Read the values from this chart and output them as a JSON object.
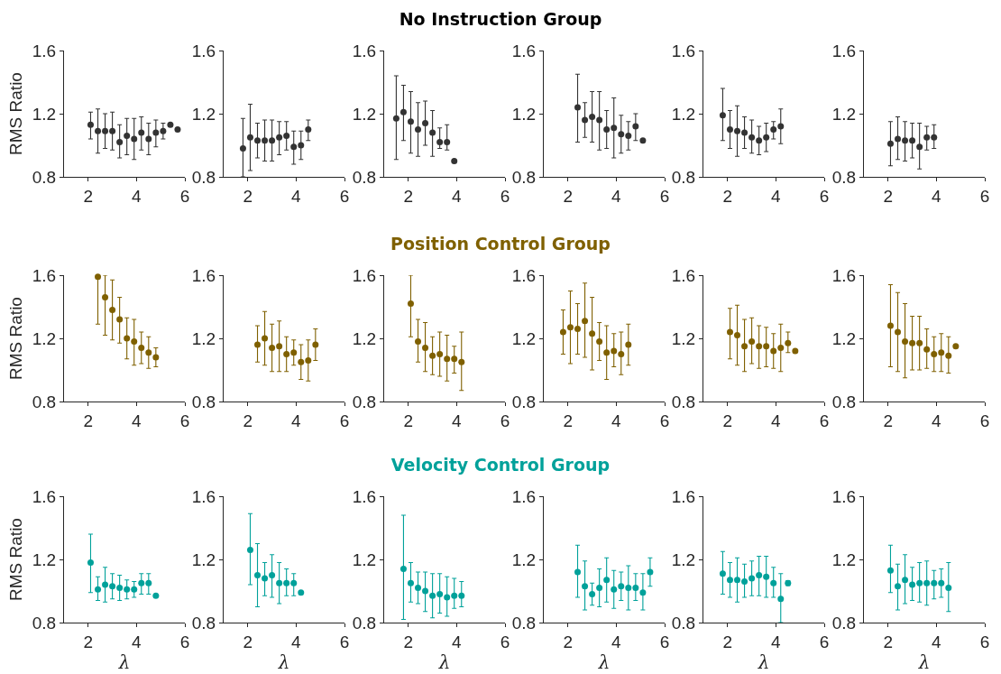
{
  "chart_data": [
    {
      "type": "other",
      "title": "No Instruction Group",
      "color": "#000000"
    },
    {
      "type": "scatter",
      "ylabel": "RMS Ratio",
      "color": "#333333",
      "marker": "circle",
      "xlim": [
        1,
        6
      ],
      "xticks": [
        2,
        4,
        6
      ],
      "ylim": [
        0.8,
        1.6
      ],
      "yticks": [
        0.8,
        1.2,
        1.6
      ],
      "x": [
        2.1,
        2.4,
        2.7,
        3.0,
        3.3,
        3.6,
        3.9,
        4.2,
        4.5,
        4.8,
        5.1,
        5.4,
        5.7
      ],
      "values": [
        1.13,
        1.09,
        1.09,
        1.09,
        1.02,
        1.06,
        1.04,
        1.08,
        1.04,
        1.08,
        1.09,
        1.13,
        1.1
      ],
      "errors": [
        [
          1.04,
          1.21
        ],
        [
          0.95,
          1.23
        ],
        [
          0.98,
          1.2
        ],
        [
          0.97,
          1.21
        ],
        [
          0.92,
          1.13
        ],
        [
          0.94,
          1.17
        ],
        [
          0.91,
          1.17
        ],
        [
          0.97,
          1.18
        ],
        [
          0.94,
          1.14
        ],
        [
          0.99,
          1.16
        ],
        [
          1.04,
          1.14
        ],
        null,
        null
      ]
    },
    {
      "type": "scatter",
      "color": "#333333",
      "marker": "circle",
      "xlim": [
        1,
        6
      ],
      "xticks": [
        2,
        4,
        6
      ],
      "ylim": [
        0.8,
        1.6
      ],
      "yticks": [
        0.8,
        1.2,
        1.6
      ],
      "x": [
        1.8,
        2.1,
        2.4,
        2.7,
        3.0,
        3.3,
        3.6,
        3.9,
        4.2,
        4.5
      ],
      "values": [
        0.98,
        1.05,
        1.03,
        1.03,
        1.03,
        1.05,
        1.06,
        0.99,
        1.0,
        1.1
      ],
      "errors": [
        [
          0.8,
          1.17
        ],
        [
          0.84,
          1.26
        ],
        [
          0.92,
          1.14
        ],
        [
          0.9,
          1.16
        ],
        [
          0.9,
          1.16
        ],
        [
          0.94,
          1.15
        ],
        [
          0.97,
          1.15
        ],
        [
          0.88,
          1.09
        ],
        [
          0.91,
          1.09
        ],
        [
          1.03,
          1.16
        ]
      ]
    },
    {
      "type": "scatter",
      "color": "#333333",
      "marker": "circle",
      "xlim": [
        1,
        6
      ],
      "xticks": [
        2,
        4,
        6
      ],
      "ylim": [
        0.8,
        1.6
      ],
      "yticks": [
        0.8,
        1.2,
        1.6
      ],
      "x": [
        1.5,
        1.8,
        2.1,
        2.4,
        2.7,
        3.0,
        3.3,
        3.6,
        3.9
      ],
      "values": [
        1.17,
        1.21,
        1.15,
        1.1,
        1.14,
        1.08,
        1.02,
        1.02,
        0.9
      ],
      "errors": [
        [
          0.91,
          1.44
        ],
        [
          1.03,
          1.38
        ],
        [
          0.95,
          1.34
        ],
        [
          0.93,
          1.27
        ],
        [
          1.0,
          1.28
        ],
        [
          0.93,
          1.22
        ],
        [
          0.98,
          1.11
        ],
        [
          0.97,
          1.13
        ],
        null
      ]
    },
    {
      "type": "scatter",
      "color": "#333333",
      "marker": "circle",
      "xlim": [
        1,
        6
      ],
      "xticks": [
        2,
        4,
        6
      ],
      "ylim": [
        0.8,
        1.6
      ],
      "yticks": [
        0.8,
        1.2,
        1.6
      ],
      "x": [
        2.4,
        2.7,
        3.0,
        3.3,
        3.6,
        3.9,
        4.2,
        4.5,
        4.8,
        5.1
      ],
      "values": [
        1.24,
        1.16,
        1.18,
        1.16,
        1.1,
        1.11,
        1.07,
        1.06,
        1.12,
        1.03
      ],
      "errors": [
        [
          1.02,
          1.45
        ],
        [
          1.05,
          1.27
        ],
        [
          1.02,
          1.34
        ],
        [
          0.97,
          1.34
        ],
        [
          0.98,
          1.22
        ],
        [
          0.92,
          1.3
        ],
        [
          0.95,
          1.19
        ],
        [
          0.97,
          1.15
        ],
        [
          1.03,
          1.2
        ],
        null
      ]
    },
    {
      "type": "scatter",
      "color": "#333333",
      "marker": "circle",
      "xlim": [
        1,
        6
      ],
      "xticks": [
        2,
        4,
        6
      ],
      "ylim": [
        0.8,
        1.6
      ],
      "yticks": [
        0.8,
        1.2,
        1.6
      ],
      "x": [
        1.8,
        2.1,
        2.4,
        2.7,
        3.0,
        3.3,
        3.6,
        3.9,
        4.2
      ],
      "values": [
        1.19,
        1.1,
        1.09,
        1.08,
        1.05,
        1.03,
        1.05,
        1.1,
        1.12
      ],
      "errors": [
        [
          1.03,
          1.36
        ],
        [
          0.98,
          1.22
        ],
        [
          0.93,
          1.25
        ],
        [
          0.98,
          1.18
        ],
        [
          0.95,
          1.16
        ],
        [
          0.94,
          1.12
        ],
        [
          0.96,
          1.14
        ],
        [
          1.04,
          1.15
        ],
        [
          1.01,
          1.23
        ]
      ]
    },
    {
      "type": "scatter",
      "color": "#333333",
      "marker": "circle",
      "xlim": [
        1,
        6
      ],
      "xticks": [
        2,
        4,
        6
      ],
      "ylim": [
        0.8,
        1.6
      ],
      "yticks": [
        0.8,
        1.2,
        1.6
      ],
      "x": [
        2.1,
        2.4,
        2.7,
        3.0,
        3.3,
        3.6,
        3.9
      ],
      "values": [
        1.01,
        1.04,
        1.03,
        1.03,
        0.99,
        1.05,
        1.05
      ],
      "errors": [
        [
          0.87,
          1.15
        ],
        [
          0.91,
          1.18
        ],
        [
          0.9,
          1.15
        ],
        [
          0.92,
          1.14
        ],
        [
          0.85,
          1.14
        ],
        [
          0.97,
          1.12
        ],
        [
          0.98,
          1.13
        ]
      ]
    },
    {
      "type": "other",
      "title": "Position Control Group",
      "color": "#7f6000"
    },
    {
      "type": "scatter",
      "ylabel": "RMS Ratio",
      "color": "#7f6000",
      "marker": "circle",
      "xlim": [
        1,
        6
      ],
      "xticks": [
        2,
        4,
        6
      ],
      "ylim": [
        0.8,
        1.6
      ],
      "yticks": [
        0.8,
        1.2,
        1.6
      ],
      "x": [
        2.4,
        2.7,
        3.0,
        3.3,
        3.6,
        3.9,
        4.2,
        4.5,
        4.8
      ],
      "values": [
        1.59,
        1.46,
        1.38,
        1.32,
        1.2,
        1.18,
        1.14,
        1.11,
        1.08
      ],
      "errors": [
        [
          1.29,
          1.6
        ],
        [
          1.22,
          1.6
        ],
        [
          1.19,
          1.57
        ],
        [
          1.17,
          1.46
        ],
        [
          1.07,
          1.33
        ],
        [
          1.03,
          1.32
        ],
        [
          1.04,
          1.24
        ],
        [
          1.01,
          1.21
        ],
        [
          1.02,
          1.14
        ]
      ]
    },
    {
      "type": "scatter",
      "color": "#7f6000",
      "marker": "circle",
      "xlim": [
        1,
        6
      ],
      "xticks": [
        2,
        4,
        6
      ],
      "ylim": [
        0.8,
        1.6
      ],
      "yticks": [
        0.8,
        1.2,
        1.6
      ],
      "x": [
        2.4,
        2.7,
        3.0,
        3.3,
        3.6,
        3.9,
        4.2,
        4.5,
        4.8
      ],
      "values": [
        1.16,
        1.2,
        1.14,
        1.15,
        1.1,
        1.11,
        1.05,
        1.06,
        1.16
      ],
      "errors": [
        [
          1.05,
          1.28
        ],
        [
          1.03,
          1.37
        ],
        [
          0.99,
          1.29
        ],
        [
          0.99,
          1.31
        ],
        [
          0.99,
          1.21
        ],
        [
          1.03,
          1.19
        ],
        [
          0.94,
          1.16
        ],
        [
          0.93,
          1.19
        ],
        [
          1.06,
          1.26
        ]
      ]
    },
    {
      "type": "scatter",
      "color": "#7f6000",
      "marker": "circle",
      "xlim": [
        1,
        6
      ],
      "xticks": [
        2,
        4,
        6
      ],
      "ylim": [
        0.8,
        1.6
      ],
      "yticks": [
        0.8,
        1.2,
        1.6
      ],
      "x": [
        2.1,
        2.4,
        2.7,
        3.0,
        3.3,
        3.6,
        3.9,
        4.2
      ],
      "values": [
        1.42,
        1.18,
        1.14,
        1.09,
        1.1,
        1.07,
        1.07,
        1.05
      ],
      "errors": [
        [
          1.21,
          1.6
        ],
        [
          1.05,
          1.32
        ],
        [
          0.99,
          1.3
        ],
        [
          0.97,
          1.21
        ],
        [
          0.96,
          1.24
        ],
        [
          0.93,
          1.22
        ],
        [
          0.98,
          1.15
        ],
        [
          0.87,
          1.24
        ]
      ]
    },
    {
      "type": "scatter",
      "color": "#7f6000",
      "marker": "circle",
      "xlim": [
        1,
        6
      ],
      "xticks": [
        2,
        4,
        6
      ],
      "ylim": [
        0.8,
        1.6
      ],
      "yticks": [
        0.8,
        1.2,
        1.6
      ],
      "x": [
        1.8,
        2.1,
        2.4,
        2.7,
        3.0,
        3.3,
        3.6,
        3.9,
        4.2,
        4.5
      ],
      "values": [
        1.24,
        1.27,
        1.26,
        1.31,
        1.23,
        1.18,
        1.11,
        1.12,
        1.1,
        1.16
      ],
      "errors": [
        [
          1.1,
          1.38
        ],
        [
          1.04,
          1.5
        ],
        [
          1.1,
          1.42
        ],
        [
          1.08,
          1.55
        ],
        [
          1.0,
          1.46
        ],
        [
          1.06,
          1.3
        ],
        [
          0.94,
          1.28
        ],
        [
          1.02,
          1.23
        ],
        [
          0.97,
          1.24
        ],
        [
          1.03,
          1.29
        ]
      ]
    },
    {
      "type": "scatter",
      "color": "#7f6000",
      "marker": "circle",
      "xlim": [
        1,
        6
      ],
      "xticks": [
        2,
        4,
        6
      ],
      "ylim": [
        0.8,
        1.6
      ],
      "yticks": [
        0.8,
        1.2,
        1.6
      ],
      "x": [
        2.1,
        2.4,
        2.7,
        3.0,
        3.3,
        3.6,
        3.9,
        4.2,
        4.5,
        4.8
      ],
      "values": [
        1.24,
        1.22,
        1.15,
        1.18,
        1.15,
        1.15,
        1.12,
        1.14,
        1.17,
        1.12
      ],
      "errors": [
        [
          1.07,
          1.39
        ],
        [
          1.03,
          1.41
        ],
        [
          0.99,
          1.32
        ],
        [
          1.04,
          1.33
        ],
        [
          1.01,
          1.28
        ],
        [
          1.02,
          1.27
        ],
        [
          1.01,
          1.23
        ],
        [
          0.99,
          1.29
        ],
        [
          1.11,
          1.24
        ],
        null
      ]
    },
    {
      "type": "scatter",
      "color": "#7f6000",
      "marker": "circle",
      "xlim": [
        1,
        6
      ],
      "xticks": [
        2,
        4,
        6
      ],
      "ylim": [
        0.8,
        1.6
      ],
      "yticks": [
        0.8,
        1.2,
        1.6
      ],
      "x": [
        2.1,
        2.4,
        2.7,
        3.0,
        3.3,
        3.6,
        3.9,
        4.2,
        4.5,
        4.8
      ],
      "values": [
        1.28,
        1.24,
        1.18,
        1.17,
        1.17,
        1.13,
        1.1,
        1.11,
        1.09,
        1.15
      ],
      "errors": [
        [
          1.02,
          1.54
        ],
        [
          0.99,
          1.49
        ],
        [
          0.95,
          1.42
        ],
        [
          1.0,
          1.34
        ],
        [
          1.0,
          1.34
        ],
        [
          1.01,
          1.26
        ],
        [
          0.99,
          1.21
        ],
        [
          0.99,
          1.23
        ],
        [
          0.98,
          1.21
        ],
        null
      ]
    },
    {
      "type": "other",
      "title": "Velocity Control Group",
      "color": "#00a19a"
    },
    {
      "type": "scatter",
      "ylabel": "RMS Ratio",
      "xlabel": "λ",
      "color": "#00a19a",
      "marker": "circle",
      "xlim": [
        1,
        6
      ],
      "xticks": [
        2,
        4,
        6
      ],
      "ylim": [
        0.8,
        1.6
      ],
      "yticks": [
        0.8,
        1.2,
        1.6
      ],
      "x": [
        2.1,
        2.4,
        2.7,
        3.0,
        3.3,
        3.6,
        3.9,
        4.2,
        4.5,
        4.8
      ],
      "values": [
        1.18,
        1.01,
        1.04,
        1.03,
        1.02,
        1.01,
        1.01,
        1.05,
        1.05,
        0.97
      ],
      "errors": [
        [
          0.99,
          1.36
        ],
        [
          0.94,
          1.09
        ],
        [
          0.93,
          1.15
        ],
        [
          0.95,
          1.11
        ],
        [
          0.94,
          1.1
        ],
        [
          0.95,
          1.07
        ],
        [
          0.96,
          1.06
        ],
        [
          0.98,
          1.11
        ],
        [
          0.98,
          1.11
        ],
        null
      ]
    },
    {
      "type": "scatter",
      "xlabel": "λ",
      "color": "#00a19a",
      "marker": "circle",
      "xlim": [
        1,
        6
      ],
      "xticks": [
        2,
        4,
        6
      ],
      "ylim": [
        0.8,
        1.6
      ],
      "yticks": [
        0.8,
        1.2,
        1.6
      ],
      "x": [
        2.1,
        2.4,
        2.7,
        3.0,
        3.3,
        3.6,
        3.9,
        4.2
      ],
      "values": [
        1.26,
        1.1,
        1.08,
        1.1,
        1.05,
        1.05,
        1.05,
        0.99
      ],
      "errors": [
        [
          1.04,
          1.49
        ],
        [
          0.9,
          1.3
        ],
        [
          0.97,
          1.18
        ],
        [
          0.96,
          1.23
        ],
        [
          0.92,
          1.18
        ],
        [
          0.97,
          1.14
        ],
        [
          0.97,
          1.11
        ],
        null
      ]
    },
    {
      "type": "scatter",
      "xlabel": "λ",
      "color": "#00a19a",
      "marker": "circle",
      "xlim": [
        1,
        6
      ],
      "xticks": [
        2,
        4,
        6
      ],
      "ylim": [
        0.8,
        1.6
      ],
      "yticks": [
        0.8,
        1.2,
        1.6
      ],
      "x": [
        1.8,
        2.1,
        2.4,
        2.7,
        3.0,
        3.3,
        3.6,
        3.9,
        4.2
      ],
      "values": [
        1.14,
        1.05,
        1.02,
        1.0,
        0.97,
        0.98,
        0.96,
        0.97,
        0.97
      ],
      "errors": [
        [
          0.82,
          1.48
        ],
        [
          0.93,
          1.18
        ],
        [
          0.92,
          1.12
        ],
        [
          0.87,
          1.12
        ],
        [
          0.83,
          1.11
        ],
        [
          0.86,
          1.11
        ],
        [
          0.84,
          1.09
        ],
        [
          0.89,
          1.08
        ],
        [
          0.9,
          1.06
        ]
      ]
    },
    {
      "type": "scatter",
      "xlabel": "λ",
      "color": "#00a19a",
      "marker": "circle",
      "xlim": [
        1,
        6
      ],
      "xticks": [
        2,
        4,
        6
      ],
      "ylim": [
        0.8,
        1.6
      ],
      "yticks": [
        0.8,
        1.2,
        1.6
      ],
      "x": [
        2.4,
        2.7,
        3.0,
        3.3,
        3.6,
        3.9,
        4.2,
        4.5,
        4.8,
        5.1,
        5.4
      ],
      "values": [
        1.12,
        1.03,
        0.98,
        1.02,
        1.07,
        1.01,
        1.03,
        1.02,
        1.02,
        0.99,
        1.12
      ],
      "errors": [
        [
          0.96,
          1.29
        ],
        [
          0.88,
          1.19
        ],
        [
          0.91,
          1.05
        ],
        [
          0.9,
          1.14
        ],
        [
          0.93,
          1.21
        ],
        [
          0.89,
          1.13
        ],
        [
          0.94,
          1.12
        ],
        [
          0.88,
          1.16
        ],
        [
          0.94,
          1.11
        ],
        [
          0.88,
          1.11
        ],
        [
          1.03,
          1.21
        ]
      ]
    },
    {
      "type": "scatter",
      "xlabel": "λ",
      "color": "#00a19a",
      "marker": "circle",
      "xlim": [
        1,
        6
      ],
      "xticks": [
        2,
        4,
        6
      ],
      "ylim": [
        0.8,
        1.6
      ],
      "yticks": [
        0.8,
        1.2,
        1.6
      ],
      "x": [
        1.8,
        2.1,
        2.4,
        2.7,
        3.0,
        3.3,
        3.6,
        3.9,
        4.2,
        4.5
      ],
      "values": [
        1.11,
        1.07,
        1.07,
        1.06,
        1.08,
        1.1,
        1.09,
        1.05,
        0.95,
        1.05
      ],
      "errors": [
        [
          0.98,
          1.25
        ],
        [
          0.96,
          1.18
        ],
        [
          0.93,
          1.21
        ],
        [
          0.96,
          1.17
        ],
        [
          0.97,
          1.19
        ],
        [
          0.97,
          1.22
        ],
        [
          0.96,
          1.22
        ],
        [
          0.96,
          1.15
        ],
        [
          0.8,
          1.11
        ],
        [
          1.035,
          1.065
        ]
      ]
    },
    {
      "type": "scatter",
      "xlabel": "λ",
      "color": "#00a19a",
      "marker": "circle",
      "xlim": [
        1,
        6
      ],
      "xticks": [
        2,
        4,
        6
      ],
      "ylim": [
        0.8,
        1.6
      ],
      "yticks": [
        0.8,
        1.2,
        1.6
      ],
      "x": [
        2.1,
        2.4,
        2.7,
        3.0,
        3.3,
        3.6,
        3.9,
        4.2,
        4.5
      ],
      "values": [
        1.13,
        1.03,
        1.07,
        1.04,
        1.05,
        1.05,
        1.05,
        1.05,
        1.02
      ],
      "errors": [
        [
          0.99,
          1.29
        ],
        [
          0.88,
          1.17
        ],
        [
          0.92,
          1.23
        ],
        [
          0.94,
          1.15
        ],
        [
          0.93,
          1.18
        ],
        [
          0.91,
          1.19
        ],
        [
          0.95,
          1.13
        ],
        [
          0.96,
          1.14
        ],
        [
          0.87,
          1.18
        ]
      ]
    }
  ]
}
